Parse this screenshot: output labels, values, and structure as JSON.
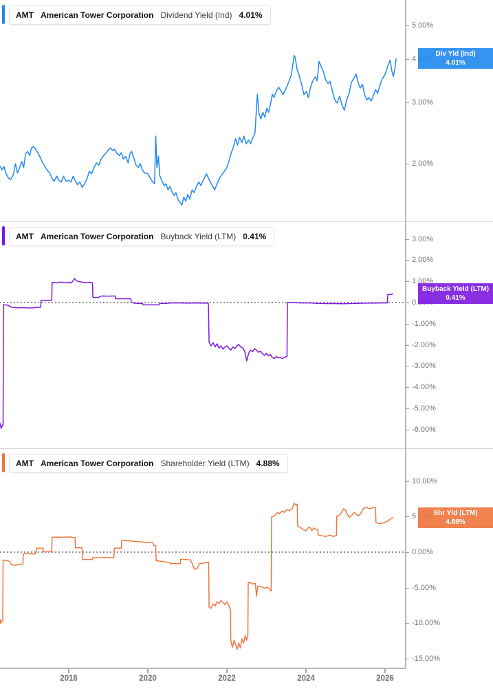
{
  "x_axis": {
    "years": [
      2018,
      2020,
      2022,
      2024,
      2026
    ],
    "labels": [
      "2018",
      "2020",
      "2022",
      "2024",
      "2026"
    ]
  },
  "chart_data": [
    {
      "type": "line",
      "ticker": "AMT",
      "company": "American Tower Corporation",
      "metric": "Dividend Yield (Ind)",
      "current_value": "4.01%",
      "badge_line1": "Div Yld (Ind)",
      "badge_line2": "4.01%",
      "badge_value": 4.01,
      "color": "#2289f0",
      "y_scale": "log",
      "zero_line": false,
      "legend_position": "right",
      "grid": false,
      "y_ticks": [
        5,
        4,
        3,
        2
      ],
      "y_tick_labels": [
        "5.00%",
        "4.00%",
        "3.00%",
        "2.00%"
      ],
      "x_range": [
        2016.26,
        2026.5
      ],
      "x": [
        2016.26,
        2016.31,
        2016.36,
        2016.41,
        2016.47,
        2016.53,
        2016.6,
        2016.65,
        2016.7,
        2016.76,
        2016.81,
        2016.86,
        2016.91,
        2016.96,
        2017.01,
        2017.06,
        2017.11,
        2017.17,
        2017.23,
        2017.29,
        2017.34,
        2017.4,
        2017.46,
        2017.52,
        2017.58,
        2017.63,
        2017.7,
        2017.75,
        2017.81,
        2017.87,
        2017.93,
        2018.0,
        2018.06,
        2018.11,
        2018.17,
        2018.22,
        2018.28,
        2018.34,
        2018.4,
        2018.47,
        2018.52,
        2018.58,
        2018.64,
        2018.7,
        2018.76,
        2018.82,
        2018.88,
        2018.95,
        2019.0,
        2019.06,
        2019.11,
        2019.16,
        2019.22,
        2019.28,
        2019.33,
        2019.38,
        2019.44,
        2019.5,
        2019.55,
        2019.59,
        2019.65,
        2019.7,
        2019.76,
        2019.81,
        2019.86,
        2019.92,
        2020.0,
        2020.06,
        2020.11,
        2020.17,
        2020.2,
        2020.23,
        2020.27,
        2020.3,
        2020.36,
        2020.41,
        2020.46,
        2020.51,
        2020.56,
        2020.61,
        2020.66,
        2020.71,
        2020.76,
        2020.81,
        2020.86,
        2020.91,
        2020.96,
        2021.01,
        2021.06,
        2021.12,
        2021.17,
        2021.23,
        2021.29,
        2021.34,
        2021.41,
        2021.48,
        2021.55,
        2021.62,
        2021.69,
        2021.76,
        2021.83,
        2021.9,
        2021.96,
        2022.01,
        2022.06,
        2022.11,
        2022.16,
        2022.22,
        2022.27,
        2022.32,
        2022.38,
        2022.43,
        2022.49,
        2022.55,
        2022.6,
        2022.66,
        2022.71,
        2022.77,
        2022.81,
        2022.86,
        2022.91,
        2022.96,
        2023.01,
        2023.06,
        2023.11,
        2023.15,
        2023.19,
        2023.25,
        2023.31,
        2023.36,
        2023.42,
        2023.49,
        2023.56,
        2023.63,
        2023.7,
        2023.73,
        2023.77,
        2023.83,
        2023.89,
        2023.95,
        2024.01,
        2024.06,
        2024.12,
        2024.18,
        2024.24,
        2024.28,
        2024.33,
        2024.38,
        2024.44,
        2024.5,
        2024.56,
        2024.61,
        2024.67,
        2024.73,
        2024.79,
        2024.85,
        2024.91,
        2024.97,
        2025.03,
        2025.09,
        2025.15,
        2025.22,
        2025.27,
        2025.31,
        2025.37,
        2025.43,
        2025.48,
        2025.54,
        2025.59,
        2025.65,
        2025.71,
        2025.76,
        2025.81,
        2025.87,
        2025.93,
        2025.99,
        2026.04,
        2026.09,
        2026.13,
        2026.17,
        2026.21,
        2026.25,
        2026.28
      ],
      "values": [
        1.97,
        1.92,
        1.96,
        1.88,
        1.82,
        1.8,
        1.86,
        2.0,
        1.88,
        1.95,
        2.03,
        1.95,
        2.14,
        2.17,
        2.11,
        2.22,
        2.24,
        2.19,
        2.14,
        2.07,
        2.01,
        1.96,
        1.91,
        1.88,
        1.81,
        1.78,
        1.84,
        1.79,
        1.77,
        1.84,
        1.78,
        1.79,
        1.77,
        1.84,
        1.78,
        1.74,
        1.77,
        1.71,
        1.75,
        1.82,
        1.9,
        1.87,
        1.95,
        2.01,
        1.98,
        2.06,
        2.11,
        2.15,
        2.19,
        2.22,
        2.18,
        2.2,
        2.14,
        2.11,
        2.15,
        2.06,
        2.1,
        2.01,
        2.14,
        2.17,
        2.07,
        1.98,
        1.95,
        2.0,
        1.92,
        1.88,
        1.87,
        1.82,
        1.78,
        1.75,
        2.4,
        1.95,
        2.1,
        1.85,
        1.78,
        1.73,
        1.75,
        1.68,
        1.72,
        1.66,
        1.62,
        1.65,
        1.58,
        1.55,
        1.52,
        1.6,
        1.56,
        1.63,
        1.58,
        1.68,
        1.65,
        1.72,
        1.77,
        1.73,
        1.8,
        1.87,
        1.8,
        1.74,
        1.68,
        1.76,
        1.83,
        1.88,
        1.92,
        1.96,
        2.05,
        2.15,
        2.22,
        2.36,
        2.26,
        2.38,
        2.3,
        2.4,
        2.28,
        2.34,
        2.28,
        2.38,
        2.45,
        3.17,
        2.8,
        2.69,
        2.81,
        2.72,
        2.89,
        2.81,
        3.0,
        3.17,
        3.1,
        3.23,
        3.32,
        3.25,
        3.16,
        3.28,
        3.43,
        3.6,
        4.1,
        4.03,
        3.76,
        3.59,
        3.38,
        3.16,
        3.23,
        3.1,
        3.33,
        3.48,
        3.56,
        3.46,
        3.94,
        3.82,
        3.68,
        3.48,
        3.4,
        3.45,
        3.23,
        3.05,
        2.99,
        3.13,
        2.95,
        2.85,
        3.05,
        3.19,
        3.43,
        3.54,
        3.62,
        3.45,
        3.3,
        3.38,
        3.17,
        3.05,
        3.1,
        3.03,
        3.15,
        3.27,
        3.19,
        3.36,
        3.51,
        3.59,
        3.73,
        3.88,
        3.97,
        3.71,
        3.56,
        3.77,
        4.01
      ]
    },
    {
      "type": "line",
      "ticker": "AMT",
      "company": "American Tower Corporation",
      "metric": "Buyback Yield (LTM)",
      "current_value": "0.41%",
      "badge_line1": "Buyback Yield (LTM)",
      "badge_line2": "0.41%",
      "badge_value": 0.41,
      "color": "#7d19e0",
      "y_scale": "linear",
      "zero_line": true,
      "legend_position": "right",
      "grid": false,
      "y_ticks": [
        3,
        2,
        1,
        0,
        -1,
        -2,
        -3,
        -4,
        -5,
        -6
      ],
      "y_tick_labels": [
        "3.00%",
        "2.00%",
        "1.00%",
        "0.00%",
        "-1.00%",
        "-2.00%",
        "-3.00%",
        "-4.00%",
        "-5.00%",
        "-6.00%"
      ],
      "x_range": [
        2016.26,
        2026.5
      ],
      "x": [
        2016.26,
        2016.29,
        2016.32,
        2016.34,
        2016.35,
        2016.45,
        2016.55,
        2016.7,
        2016.85,
        2017.0,
        2017.1,
        2017.25,
        2017.29,
        2017.3,
        2017.45,
        2017.57,
        2017.58,
        2017.7,
        2017.8,
        2017.9,
        2018.0,
        2018.05,
        2018.1,
        2018.15,
        2018.2,
        2018.28,
        2018.35,
        2018.45,
        2018.55,
        2018.6,
        2018.61,
        2018.75,
        2018.83,
        2019.0,
        2019.15,
        2019.17,
        2019.18,
        2019.35,
        2019.55,
        2019.57,
        2019.58,
        2019.7,
        2019.85,
        2019.87,
        2019.88,
        2020.0,
        2020.15,
        2020.28,
        2020.3,
        2020.45,
        2020.6,
        2020.8,
        2021.0,
        2021.2,
        2021.4,
        2021.53,
        2021.55,
        2021.6,
        2021.65,
        2021.7,
        2021.75,
        2021.8,
        2021.85,
        2021.9,
        2021.95,
        2022.0,
        2022.05,
        2022.1,
        2022.15,
        2022.2,
        2022.25,
        2022.3,
        2022.35,
        2022.4,
        2022.45,
        2022.5,
        2022.55,
        2022.6,
        2022.65,
        2022.7,
        2022.75,
        2022.8,
        2022.85,
        2022.9,
        2022.95,
        2023.0,
        2023.05,
        2023.1,
        2023.15,
        2023.2,
        2023.25,
        2023.3,
        2023.35,
        2023.4,
        2023.45,
        2023.5,
        2023.52,
        2023.53,
        2023.7,
        2023.9,
        2024.1,
        2024.3,
        2024.5,
        2024.7,
        2024.9,
        2025.1,
        2025.3,
        2025.5,
        2025.7,
        2025.9,
        2026.04,
        2026.06,
        2026.07,
        2026.14,
        2026.2
      ],
      "values": [
        -5.7,
        -5.95,
        -5.8,
        -5.8,
        -0.1,
        -0.12,
        -0.22,
        -0.25,
        -0.24,
        -0.26,
        -0.25,
        -0.22,
        -0.22,
        0.1,
        0.1,
        0.1,
        0.95,
        0.93,
        0.97,
        0.93,
        0.96,
        0.92,
        1.0,
        1.13,
        1.02,
        0.98,
        0.96,
        0.93,
        0.95,
        0.94,
        0.24,
        0.24,
        0.31,
        0.3,
        0.31,
        0.31,
        0.18,
        0.18,
        0.18,
        0.18,
        0.0,
        -0.04,
        -0.05,
        -0.05,
        -0.11,
        -0.11,
        -0.11,
        -0.11,
        -0.05,
        -0.04,
        -0.02,
        -0.02,
        -0.03,
        -0.02,
        -0.03,
        -0.03,
        -1.88,
        -2.05,
        -1.9,
        -2.1,
        -1.95,
        -2.15,
        -2.05,
        -2.2,
        -2.1,
        -2.05,
        -2.15,
        -2.25,
        -2.1,
        -2.18,
        -2.05,
        -1.98,
        -2.1,
        -2.15,
        -2.3,
        -2.76,
        -2.4,
        -2.25,
        -2.32,
        -2.18,
        -2.25,
        -2.35,
        -2.3,
        -2.42,
        -2.5,
        -2.4,
        -2.52,
        -2.45,
        -2.6,
        -2.66,
        -2.55,
        -2.62,
        -2.58,
        -2.65,
        -2.6,
        -2.55,
        -2.55,
        0.0,
        -0.01,
        -0.02,
        -0.02,
        -0.04,
        -0.05,
        -0.05,
        -0.06,
        -0.05,
        -0.04,
        -0.03,
        -0.03,
        -0.02,
        -0.02,
        -0.02,
        0.38,
        0.38,
        0.41
      ]
    },
    {
      "type": "line",
      "ticker": "AMT",
      "company": "American Tower Corporation",
      "metric": "Shareholder Yield (LTM)",
      "current_value": "4.88%",
      "badge_line1": "Shr Yld (LTM)",
      "badge_line2": "4.88%",
      "badge_value": 4.88,
      "color": "#f0763e",
      "y_scale": "linear",
      "zero_line": true,
      "legend_position": "right",
      "grid": false,
      "y_ticks": [
        10,
        5,
        0,
        -5,
        -10,
        -15
      ],
      "y_tick_labels": [
        "10.00%",
        "5.00%",
        "0.00%",
        "-5.00%",
        "-10.00%",
        "-15.00%"
      ],
      "x_range": [
        2016.26,
        2026.5
      ],
      "x": [
        2016.26,
        2016.28,
        2016.31,
        2016.33,
        2016.34,
        2016.45,
        2016.5,
        2016.55,
        2016.62,
        2016.7,
        2016.78,
        2016.84,
        2016.85,
        2016.95,
        2017.05,
        2017.17,
        2017.18,
        2017.3,
        2017.35,
        2017.36,
        2017.5,
        2017.57,
        2017.58,
        2017.7,
        2017.8,
        2017.9,
        2018.0,
        2018.05,
        2018.1,
        2018.16,
        2018.17,
        2018.3,
        2018.34,
        2018.35,
        2018.55,
        2018.6,
        2018.61,
        2018.8,
        2019.0,
        2019.1,
        2019.14,
        2019.15,
        2019.3,
        2019.33,
        2019.34,
        2019.5,
        2019.7,
        2019.9,
        2020.05,
        2020.13,
        2020.14,
        2020.2,
        2020.21,
        2020.35,
        2020.45,
        2020.55,
        2020.56,
        2020.57,
        2020.7,
        2020.82,
        2020.83,
        2020.95,
        2021.08,
        2021.12,
        2021.18,
        2021.25,
        2021.3,
        2021.4,
        2021.48,
        2021.54,
        2021.55,
        2021.6,
        2021.65,
        2021.7,
        2021.75,
        2021.8,
        2021.85,
        2021.9,
        2021.95,
        2022.0,
        2022.05,
        2022.09,
        2022.1,
        2022.14,
        2022.18,
        2022.22,
        2022.26,
        2022.3,
        2022.34,
        2022.38,
        2022.42,
        2022.46,
        2022.5,
        2022.53,
        2022.54,
        2022.6,
        2022.65,
        2022.72,
        2022.75,
        2022.78,
        2022.8,
        2022.88,
        2022.95,
        2023.02,
        2023.08,
        2023.12,
        2023.13,
        2023.2,
        2023.28,
        2023.33,
        2023.4,
        2023.45,
        2023.52,
        2023.58,
        2023.65,
        2023.7,
        2023.74,
        2023.78,
        2023.79,
        2023.85,
        2023.92,
        2024.0,
        2024.05,
        2024.1,
        2024.15,
        2024.2,
        2024.25,
        2024.3,
        2024.31,
        2024.4,
        2024.5,
        2024.6,
        2024.7,
        2024.77,
        2024.78,
        2024.82,
        2024.88,
        2024.95,
        2025.0,
        2025.05,
        2025.1,
        2025.15,
        2025.22,
        2025.28,
        2025.33,
        2025.38,
        2025.45,
        2025.52,
        2025.6,
        2025.7,
        2025.76,
        2025.77,
        2025.85,
        2025.95,
        2026.05,
        2026.12,
        2026.2
      ],
      "values": [
        -9.4,
        -10.05,
        -9.7,
        -9.7,
        -1.15,
        -1.2,
        -1.3,
        -1.75,
        -1.85,
        -1.8,
        -1.7,
        -1.7,
        -0.25,
        -0.2,
        -0.25,
        -0.25,
        0.55,
        0.55,
        0.55,
        0.05,
        0.05,
        0.05,
        2.1,
        2.12,
        2.08,
        2.12,
        2.1,
        2.15,
        2.05,
        2.05,
        0.6,
        0.6,
        0.6,
        -1.05,
        -1.05,
        -1.05,
        -0.78,
        -0.8,
        -0.75,
        -0.8,
        -0.8,
        0.55,
        0.55,
        0.55,
        1.64,
        1.6,
        1.5,
        1.4,
        1.35,
        1.35,
        0.95,
        0.9,
        -1.2,
        -1.3,
        -1.4,
        -1.45,
        -1.45,
        -1.64,
        -1.6,
        -1.65,
        -1.0,
        -1.05,
        -1.1,
        -1.6,
        -2.4,
        -2.3,
        -1.64,
        -1.55,
        -1.45,
        -1.45,
        -7.8,
        -7.9,
        -7.3,
        -7.6,
        -7.0,
        -7.2,
        -6.8,
        -7.1,
        -7.4,
        -7.0,
        -7.5,
        -8.2,
        -12.5,
        -13.4,
        -12.4,
        -13.0,
        -13.7,
        -12.8,
        -13.5,
        -12.2,
        -12.8,
        -11.8,
        -12.4,
        -11.6,
        -4.25,
        -4.35,
        -4.5,
        -4.4,
        -6.2,
        -4.8,
        -4.8,
        -4.9,
        -5.1,
        -4.95,
        -5.2,
        -5.5,
        4.95,
        5.1,
        5.6,
        5.4,
        5.8,
        5.6,
        6.0,
        5.85,
        6.1,
        6.9,
        6.6,
        6.75,
        3.67,
        3.5,
        3.2,
        3.0,
        3.4,
        3.5,
        3.0,
        3.4,
        3.2,
        3.2,
        2.4,
        2.3,
        2.2,
        2.4,
        2.2,
        2.35,
        5.1,
        5.1,
        5.4,
        6.1,
        5.9,
        5.3,
        4.9,
        5.1,
        5.6,
        5.3,
        5.1,
        5.4,
        6.1,
        6.3,
        6.1,
        6.25,
        6.25,
        4.15,
        4.0,
        4.1,
        4.3,
        4.6,
        4.88
      ]
    }
  ]
}
